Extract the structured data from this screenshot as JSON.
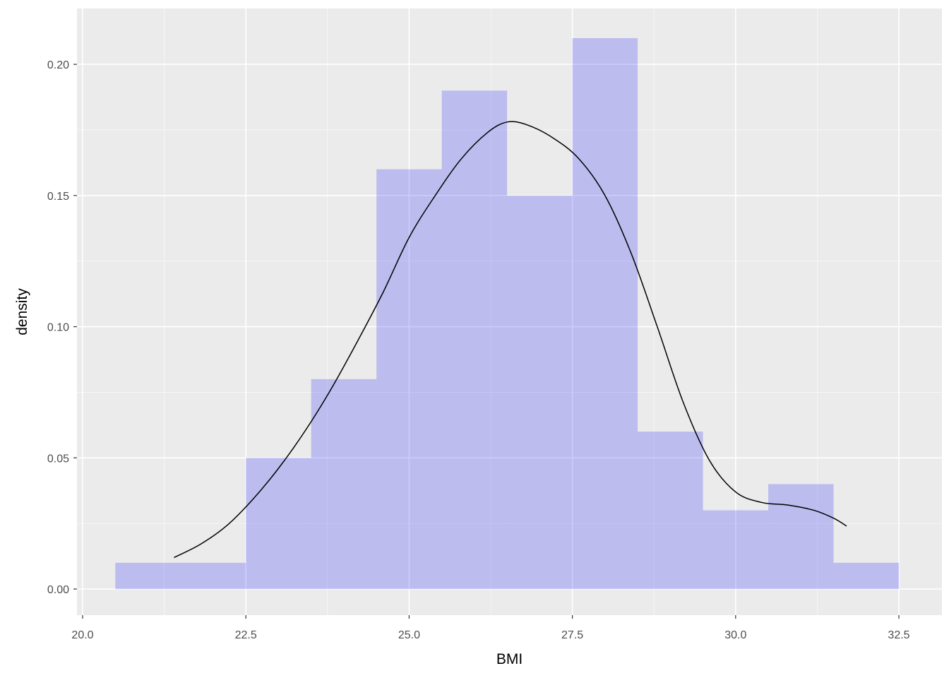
{
  "chart_data": {
    "type": "histogram",
    "xlabel": "BMI",
    "ylabel": "density",
    "xlim": [
      20.0,
      32.5
    ],
    "ylim": [
      0.0,
      0.2
    ],
    "x_ticks": [
      "20.0",
      "22.5",
      "25.0",
      "27.5",
      "30.0",
      "32.5"
    ],
    "y_ticks": [
      "0.00",
      "0.05",
      "0.10",
      "0.15",
      "0.20"
    ],
    "grid": true,
    "bins": [
      {
        "x0": 20.5,
        "x1": 21.5,
        "density": 0.01
      },
      {
        "x0": 21.5,
        "x1": 22.5,
        "density": 0.01
      },
      {
        "x0": 22.5,
        "x1": 23.5,
        "density": 0.05
      },
      {
        "x0": 23.5,
        "x1": 24.5,
        "density": 0.08
      },
      {
        "x0": 24.5,
        "x1": 25.5,
        "density": 0.16
      },
      {
        "x0": 25.5,
        "x1": 26.5,
        "density": 0.19
      },
      {
        "x0": 26.5,
        "x1": 27.5,
        "density": 0.15
      },
      {
        "x0": 27.5,
        "x1": 28.5,
        "density": 0.21
      },
      {
        "x0": 28.5,
        "x1": 29.5,
        "density": 0.06
      },
      {
        "x0": 29.5,
        "x1": 30.5,
        "density": 0.03
      },
      {
        "x0": 30.5,
        "x1": 31.5,
        "density": 0.04
      },
      {
        "x0": 31.5,
        "x1": 32.5,
        "density": 0.01
      }
    ],
    "density_curve": [
      [
        21.4,
        0.012
      ],
      [
        21.8,
        0.017
      ],
      [
        22.2,
        0.024
      ],
      [
        22.6,
        0.034
      ],
      [
        23.0,
        0.046
      ],
      [
        23.4,
        0.06
      ],
      [
        23.8,
        0.076
      ],
      [
        24.2,
        0.094
      ],
      [
        24.6,
        0.113
      ],
      [
        25.0,
        0.134
      ],
      [
        25.4,
        0.15
      ],
      [
        25.8,
        0.164
      ],
      [
        26.2,
        0.174
      ],
      [
        26.5,
        0.178
      ],
      [
        26.8,
        0.177
      ],
      [
        27.2,
        0.172
      ],
      [
        27.6,
        0.164
      ],
      [
        28.0,
        0.15
      ],
      [
        28.4,
        0.128
      ],
      [
        28.8,
        0.1
      ],
      [
        29.2,
        0.071
      ],
      [
        29.6,
        0.049
      ],
      [
        30.0,
        0.037
      ],
      [
        30.4,
        0.033
      ],
      [
        30.8,
        0.032
      ],
      [
        31.2,
        0.03
      ],
      [
        31.5,
        0.027
      ],
      [
        31.7,
        0.024
      ]
    ],
    "colors": {
      "panel_background": "#ebebeb",
      "grid_major": "#ffffff",
      "bar_fill": "#0000ff",
      "bar_fill_opacity": 0.2,
      "curve": "#000000"
    }
  }
}
